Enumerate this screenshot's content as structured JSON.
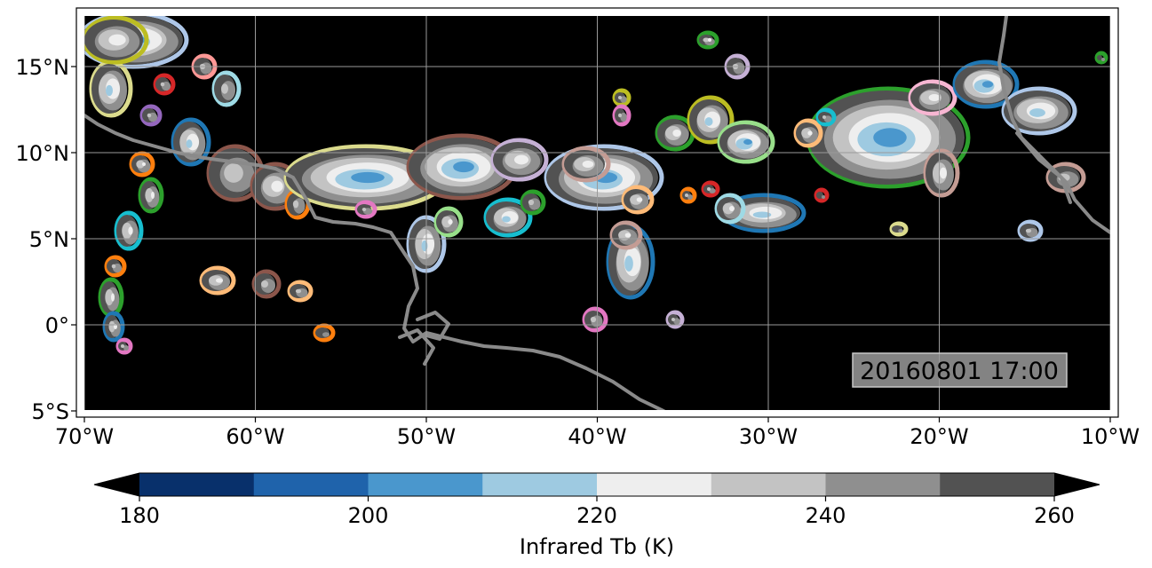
{
  "map": {
    "lon_ticks": [
      "70°W",
      "60°W",
      "50°W",
      "40°W",
      "30°W",
      "20°W",
      "10°W"
    ],
    "lat_ticks": [
      "15°N",
      "10°N",
      "5°N",
      "0°",
      "5°S"
    ],
    "timestamp": "20160801 17:00",
    "background_color": "#000000",
    "coastline_color": "#8a8a8a",
    "gridline_color": "#9a9a9a"
  },
  "colorbar": {
    "label": "Infrared Tb (K)",
    "tick_labels": [
      "180",
      "200",
      "220",
      "240",
      "260"
    ],
    "levels": [
      180,
      190,
      200,
      210,
      220,
      230,
      240,
      250,
      260
    ],
    "colors": [
      "#08306b",
      "#1f63ab",
      "#4a97cd",
      "#9ecae1",
      "#eeeeee",
      "#c3c3c3",
      "#8f8f8f",
      "#525252"
    ],
    "under_color": "#000000",
    "over_color": "#000000"
  },
  "cloud_outline_colors": [
    "#1f77b4",
    "#ff7f0e",
    "#2ca02c",
    "#d62728",
    "#9467bd",
    "#8c564b",
    "#e377c2",
    "#bcbd22",
    "#17becf",
    "#aec7e8",
    "#ffbb78",
    "#98df8a",
    "#ff9896",
    "#c5b0d5",
    "#dbdb8d",
    "#9edae5",
    "#c49c94",
    "#f7b6d2"
  ]
}
